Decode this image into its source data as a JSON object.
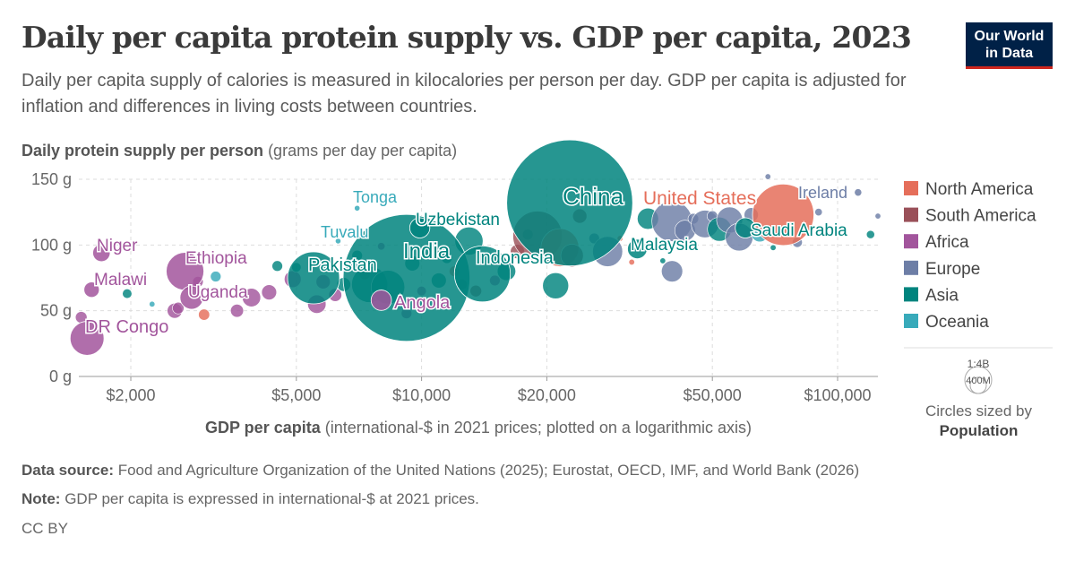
{
  "header": {
    "title": "Daily per capita protein supply vs. GDP per capita, 2023",
    "subtitle": "Daily per capita supply of calories is measured in kilocalories per person per day. GDP per capita is adjusted for inflation and differences in living costs between countries.",
    "logo_line1": "Our World",
    "logo_line2": "in Data"
  },
  "colors": {
    "North America": "#e56e5a",
    "South America": "#9a5059",
    "Africa": "#a2559c",
    "Europe": "#6d7ea6",
    "Asia": "#00847e",
    "Oceania": "#38aaba"
  },
  "chart_data": {
    "type": "scatter",
    "title": "Daily per capita protein supply vs. GDP per capita, 2023",
    "ylabel_bold": "Daily protein supply per person",
    "ylabel_unit": "(grams per day per capita)",
    "xlabel_bold": "GDP per capita",
    "xlabel_unit": "(international-$ in 2021 prices; plotted on a logarithmic axis)",
    "x_scale": "log",
    "xlim": [
      1500,
      125000
    ],
    "ylim": [
      0,
      150
    ],
    "x_ticks": [
      {
        "value": 2000,
        "label": "$2,000"
      },
      {
        "value": 5000,
        "label": "$5,000"
      },
      {
        "value": 10000,
        "label": "$10,000"
      },
      {
        "value": 20000,
        "label": "$20,000"
      },
      {
        "value": 50000,
        "label": "$50,000"
      },
      {
        "value": 100000,
        "label": "$100,000"
      }
    ],
    "y_ticks": [
      {
        "value": 0,
        "label": "0 g"
      },
      {
        "value": 50,
        "label": "50 g"
      },
      {
        "value": 100,
        "label": "100 g"
      },
      {
        "value": 150,
        "label": "150 g"
      }
    ],
    "grid": true,
    "legend_position": "right",
    "legend": [
      "North America",
      "South America",
      "Africa",
      "Europe",
      "Asia",
      "Oceania"
    ],
    "size_legend": {
      "large": "1:4B",
      "small": "400M",
      "caption": "Circles sized by",
      "caption_bold": "Population"
    },
    "labeled_points": [
      {
        "name": "China",
        "x": 22700,
        "y": 132,
        "pop": 1410,
        "region": "Asia"
      },
      {
        "name": "India",
        "x": 9200,
        "y": 75,
        "pop": 1430,
        "region": "Asia"
      },
      {
        "name": "United States",
        "x": 74000,
        "y": 123,
        "pop": 335,
        "region": "North America"
      },
      {
        "name": "Ireland",
        "x": 112000,
        "y": 140,
        "pop": 5,
        "region": "Europe"
      },
      {
        "name": "Saudi Arabia",
        "x": 60000,
        "y": 113,
        "pop": 36,
        "region": "Asia"
      },
      {
        "name": "Malaysia",
        "x": 33000,
        "y": 97,
        "pop": 34,
        "region": "Asia"
      },
      {
        "name": "Uzbekistan",
        "x": 9900,
        "y": 113,
        "pop": 36,
        "region": "Asia"
      },
      {
        "name": "Indonesia",
        "x": 14000,
        "y": 78,
        "pop": 278,
        "region": "Asia"
      },
      {
        "name": "Pakistan",
        "x": 5500,
        "y": 75,
        "pop": 240,
        "region": "Asia"
      },
      {
        "name": "Tonga",
        "x": 7000,
        "y": 128,
        "pop": 0.1,
        "region": "Oceania"
      },
      {
        "name": "Tuvalu",
        "x": 6300,
        "y": 103,
        "pop": 0.01,
        "region": "Oceania"
      },
      {
        "name": "Niger",
        "x": 1700,
        "y": 94,
        "pop": 27,
        "region": "Africa"
      },
      {
        "name": "Ethiopia",
        "x": 2700,
        "y": 80,
        "pop": 126,
        "region": "Africa"
      },
      {
        "name": "Malawi",
        "x": 1610,
        "y": 66,
        "pop": 21,
        "region": "Africa"
      },
      {
        "name": "Uganda",
        "x": 2800,
        "y": 60,
        "pop": 48,
        "region": "Africa"
      },
      {
        "name": "DR Congo",
        "x": 1570,
        "y": 29,
        "pop": 102,
        "region": "Africa"
      },
      {
        "name": "Angola",
        "x": 8000,
        "y": 58,
        "pop": 37,
        "region": "Africa"
      }
    ],
    "points": [
      {
        "x": 1520,
        "y": 45,
        "region": "Africa",
        "pop": 12
      },
      {
        "x": 1960,
        "y": 63,
        "region": "Asia",
        "pop": 8
      },
      {
        "x": 2250,
        "y": 55,
        "region": "Oceania",
        "pop": 1
      },
      {
        "x": 2550,
        "y": 50,
        "region": "Africa",
        "pop": 20
      },
      {
        "x": 2600,
        "y": 52,
        "region": "Africa",
        "pop": 12
      },
      {
        "x": 2900,
        "y": 72,
        "region": "Africa",
        "pop": 10
      },
      {
        "x": 3000,
        "y": 47,
        "region": "North America",
        "pop": 11
      },
      {
        "x": 3200,
        "y": 76,
        "region": "Oceania",
        "pop": 10
      },
      {
        "x": 3600,
        "y": 50,
        "region": "Africa",
        "pop": 15
      },
      {
        "x": 3900,
        "y": 60,
        "region": "Africa",
        "pop": 30
      },
      {
        "x": 4300,
        "y": 64,
        "region": "Africa",
        "pop": 20
      },
      {
        "x": 4500,
        "y": 84,
        "region": "Asia",
        "pop": 10
      },
      {
        "x": 4900,
        "y": 74,
        "region": "Africa",
        "pop": 25
      },
      {
        "x": 5000,
        "y": 83,
        "region": "Asia",
        "pop": 8
      },
      {
        "x": 5600,
        "y": 55,
        "region": "Africa",
        "pop": 30
      },
      {
        "x": 5800,
        "y": 72,
        "region": "Africa",
        "pop": 18
      },
      {
        "x": 6200,
        "y": 62,
        "region": "Africa",
        "pop": 15
      },
      {
        "x": 6500,
        "y": 70,
        "region": "Asia",
        "pop": 17
      },
      {
        "x": 7000,
        "y": 92,
        "region": "Asia",
        "pop": 10
      },
      {
        "x": 7300,
        "y": 78,
        "region": "North America",
        "pop": 11
      },
      {
        "x": 7500,
        "y": 70,
        "region": "Asia",
        "pop": 115
      },
      {
        "x": 8000,
        "y": 99,
        "region": "Africa",
        "pop": 5
      },
      {
        "x": 8300,
        "y": 68,
        "region": "Asia",
        "pop": 100
      },
      {
        "x": 9200,
        "y": 48,
        "region": "Africa",
        "pop": 10
      },
      {
        "x": 9500,
        "y": 86,
        "region": "Asia",
        "pop": 20
      },
      {
        "x": 10000,
        "y": 65,
        "region": "Africa",
        "pop": 8
      },
      {
        "x": 11000,
        "y": 73,
        "region": "Asia",
        "pop": 20
      },
      {
        "x": 11500,
        "y": 90,
        "region": "Asia",
        "pop": 10
      },
      {
        "x": 12000,
        "y": 80,
        "region": "North America",
        "pop": 10
      },
      {
        "x": 12500,
        "y": 70,
        "region": "South America",
        "pop": 10
      },
      {
        "x": 13000,
        "y": 103,
        "region": "Asia",
        "pop": 70
      },
      {
        "x": 13500,
        "y": 65,
        "region": "South America",
        "pop": 12
      },
      {
        "x": 15000,
        "y": 73,
        "region": "Africa",
        "pop": 10
      },
      {
        "x": 16000,
        "y": 80,
        "region": "Asia",
        "pop": 30
      },
      {
        "x": 17000,
        "y": 95,
        "region": "South America",
        "pop": 18
      },
      {
        "x": 18000,
        "y": 108,
        "region": "Asia",
        "pop": 10
      },
      {
        "x": 19000,
        "y": 107,
        "region": "South America",
        "pop": 216
      },
      {
        "x": 21000,
        "y": 69,
        "region": "Asia",
        "pop": 60
      },
      {
        "x": 21500,
        "y": 98,
        "region": "North America",
        "pop": 128
      },
      {
        "x": 23000,
        "y": 92,
        "region": "South America",
        "pop": 45
      },
      {
        "x": 24000,
        "y": 122,
        "region": "South America",
        "pop": 18
      },
      {
        "x": 26000,
        "y": 105,
        "region": "Europe",
        "pop": 10
      },
      {
        "x": 28000,
        "y": 95,
        "region": "Europe",
        "pop": 80
      },
      {
        "x": 30000,
        "y": 105,
        "region": "North America",
        "pop": 3
      },
      {
        "x": 32000,
        "y": 87,
        "region": "North America",
        "pop": 3
      },
      {
        "x": 35000,
        "y": 120,
        "region": "Asia",
        "pop": 40
      },
      {
        "x": 38000,
        "y": 88,
        "region": "Asia",
        "pop": 2
      },
      {
        "x": 40000,
        "y": 118,
        "region": "Europe",
        "pop": 145
      },
      {
        "x": 40000,
        "y": 80,
        "region": "Europe",
        "pop": 40
      },
      {
        "x": 43000,
        "y": 111,
        "region": "Europe",
        "pop": 38
      },
      {
        "x": 45000,
        "y": 120,
        "region": "Europe",
        "pop": 10
      },
      {
        "x": 48000,
        "y": 116,
        "region": "Europe",
        "pop": 67
      },
      {
        "x": 50000,
        "y": 122,
        "region": "Europe",
        "pop": 10
      },
      {
        "x": 52000,
        "y": 112,
        "region": "Asia",
        "pop": 51
      },
      {
        "x": 55000,
        "y": 119,
        "region": "Europe",
        "pop": 60
      },
      {
        "x": 58000,
        "y": 106,
        "region": "Europe",
        "pop": 68
      },
      {
        "x": 62000,
        "y": 123,
        "region": "Europe",
        "pop": 18
      },
      {
        "x": 65000,
        "y": 109,
        "region": "Oceania",
        "pop": 27
      },
      {
        "x": 68000,
        "y": 152,
        "region": "Europe",
        "pop": 1
      },
      {
        "x": 70000,
        "y": 98,
        "region": "Asia",
        "pop": 3
      },
      {
        "x": 80000,
        "y": 102,
        "region": "Europe",
        "pop": 9
      },
      {
        "x": 90000,
        "y": 125,
        "region": "Europe",
        "pop": 5
      },
      {
        "x": 120000,
        "y": 108,
        "region": "Asia",
        "pop": 6
      },
      {
        "x": 125000,
        "y": 122,
        "region": "Europe",
        "pop": 1
      }
    ]
  },
  "footer": {
    "source_label": "Data source:",
    "source_text": "Food and Agriculture Organization of the United Nations (2025); Eurostat, OECD, IMF, and World Bank (2026)",
    "note_label": "Note:",
    "note_text": "GDP per capita is expressed in international-$ at 2021 prices.",
    "license": "CC BY"
  }
}
